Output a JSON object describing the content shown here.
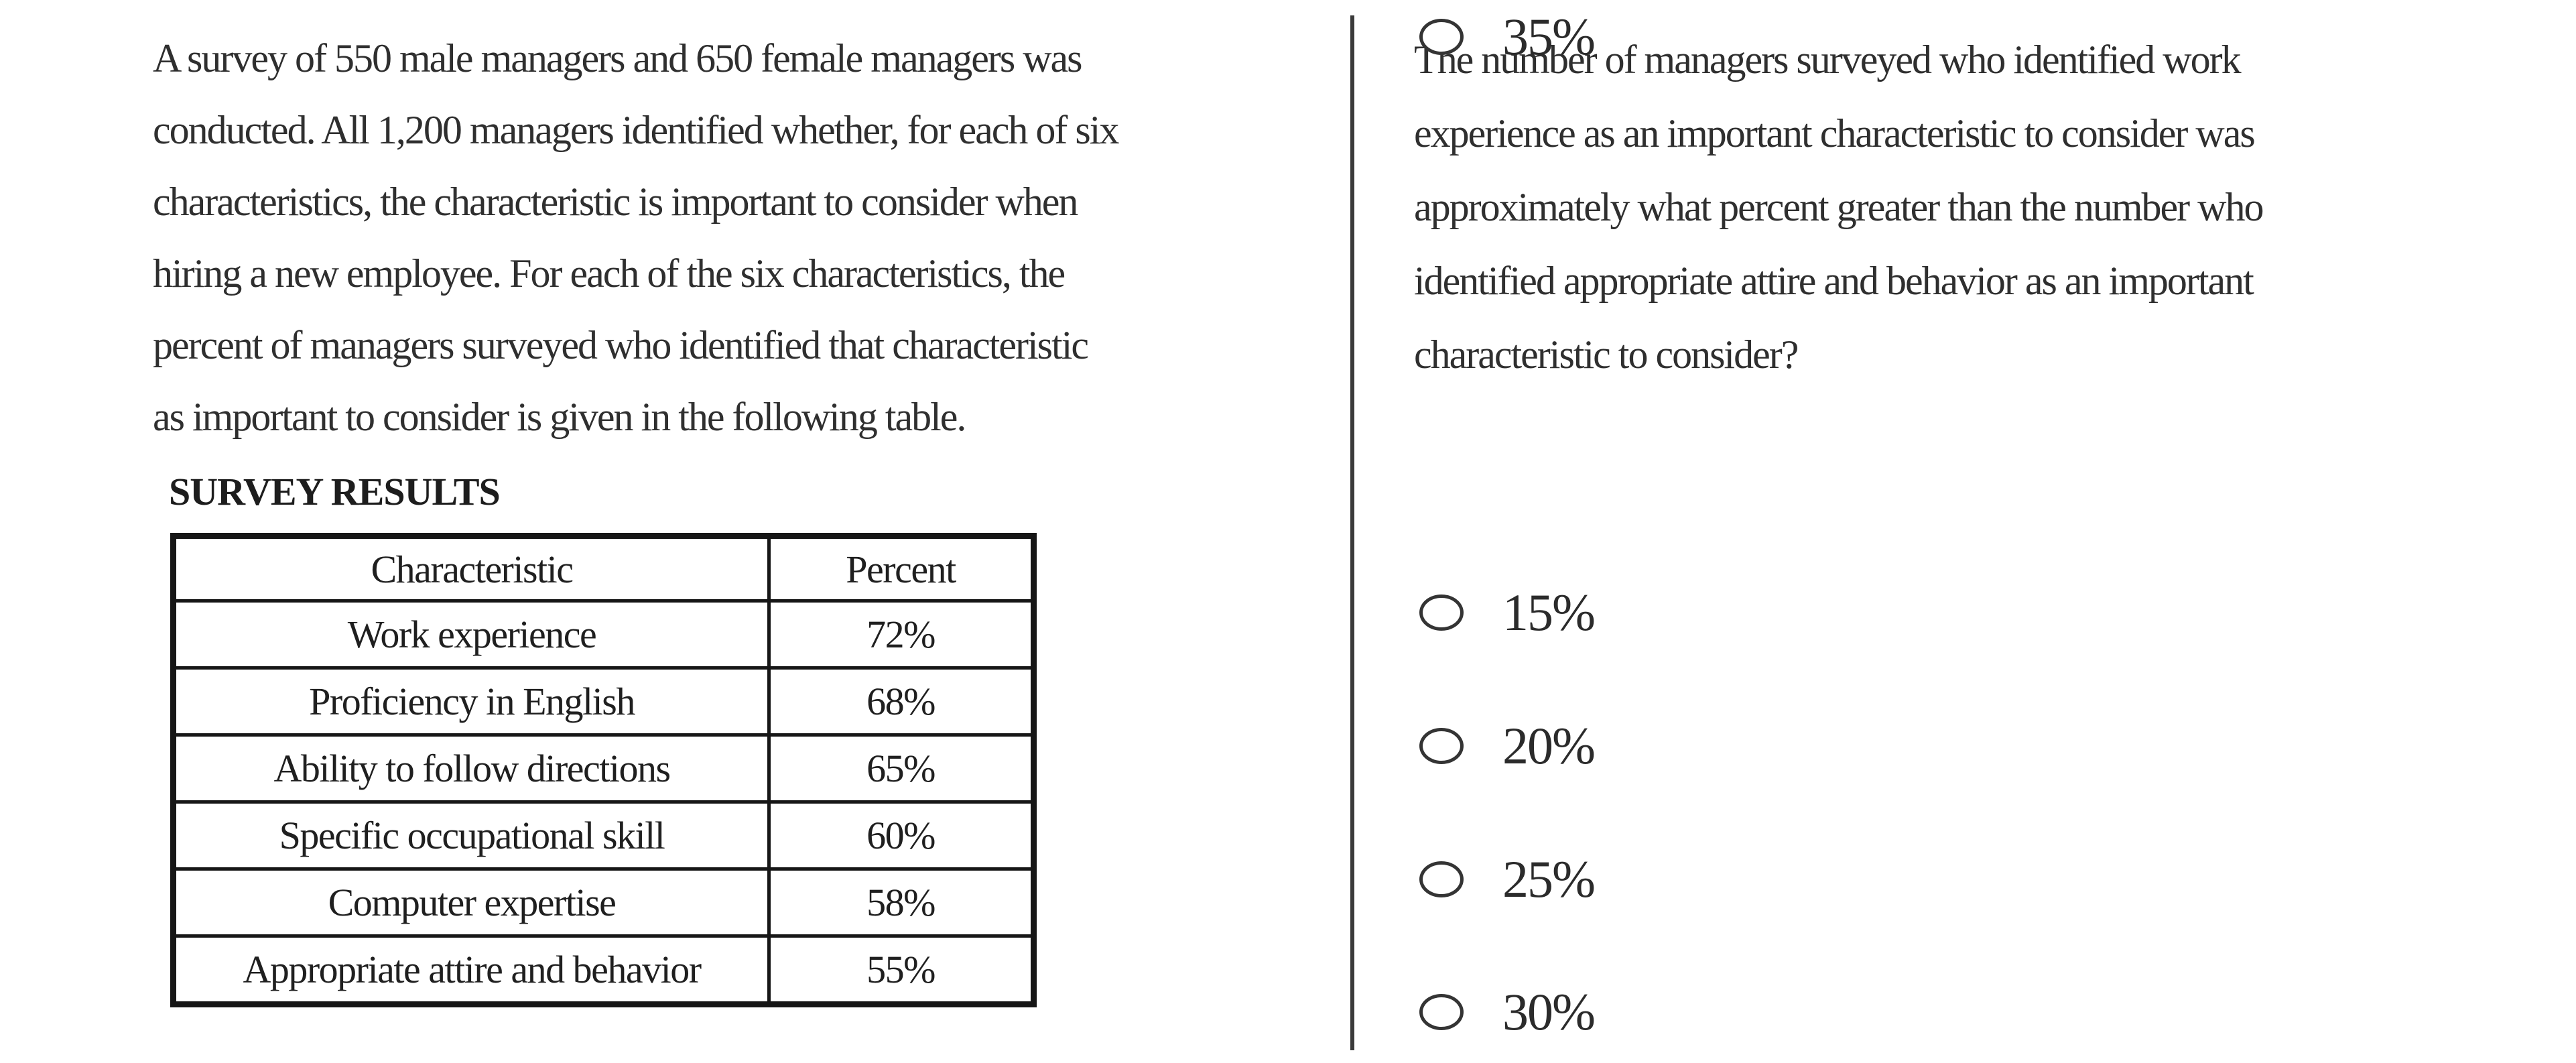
{
  "page": {
    "background": "#ffffff",
    "text_color": "#2f2f2f",
    "divider_color": "#3a3a3a",
    "table_border_color": "#161616"
  },
  "left_panel": {
    "paragraph_lines": [
      "A survey of 550 male managers and 650 female managers was",
      "conducted. All 1,200 managers identified whether, for each of six",
      "characteristics, the characteristic is important to consider when",
      "hiring a new employee. For each of the six characteristics, the",
      "percent of managers surveyed who identified that characteristic",
      "as important to consider is given in the following table."
    ],
    "table_title": "SURVEY RESULTS",
    "table": {
      "columns": [
        "Characteristic",
        "Percent"
      ],
      "rows": [
        [
          "Work experience",
          "72%"
        ],
        [
          "Proficiency in English",
          "68%"
        ],
        [
          "Ability to follow directions",
          "65%"
        ],
        [
          "Specific occupational skill",
          "60%"
        ],
        [
          "Computer expertise",
          "58%"
        ],
        [
          "Appropriate attire and behavior",
          "55%"
        ]
      ]
    }
  },
  "right_panel": {
    "question_lines": [
      "The number of managers surveyed who identified work",
      "experience as an important characteristic to consider was",
      "approximately what percent greater than the number who",
      "identified appropriate attire and behavior as an important",
      "characteristic to consider?"
    ],
    "options": [
      {
        "label": "15%",
        "selected": false
      },
      {
        "label": "20%",
        "selected": false
      },
      {
        "label": "25%",
        "selected": false
      },
      {
        "label": "30%",
        "selected": false
      },
      {
        "label": "35%",
        "selected": false
      }
    ]
  }
}
